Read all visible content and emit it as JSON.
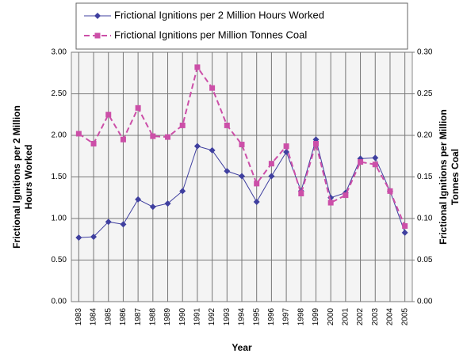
{
  "chart_data": {
    "type": "line",
    "xlabel": "Year",
    "ylabel": [
      "Frictional Ignitions per 2 Million",
      "Hours Worked"
    ],
    "y2label": [
      "Frictional Ignitions per Million",
      "Tonnes Coal"
    ],
    "categories": [
      "1983",
      "1984",
      "1985",
      "1986",
      "1987",
      "1988",
      "1989",
      "1990",
      "1991",
      "1992",
      "1993",
      "1994",
      "1995",
      "1996",
      "1997",
      "1998",
      "1999",
      "2000",
      "2001",
      "2002",
      "2003",
      "2004",
      "2005"
    ],
    "series": [
      {
        "name": "Frictional Ignitions per 2 Million Hours Worked",
        "color": "#3f3f9f",
        "marker": "diamond",
        "axis": "y",
        "values": [
          0.77,
          0.78,
          0.96,
          0.93,
          1.23,
          1.14,
          1.18,
          1.33,
          1.87,
          1.82,
          1.57,
          1.51,
          1.2,
          1.51,
          1.8,
          1.33,
          1.95,
          1.25,
          1.31,
          1.72,
          1.73,
          1.33,
          0.83
        ]
      },
      {
        "name": "Frictional Ignitions per Million Tonnes Coal",
        "color": "#cc4fa8",
        "marker": "square",
        "dashed": true,
        "axis": "y2",
        "values": [
          0.202,
          0.19,
          0.225,
          0.195,
          0.233,
          0.199,
          0.198,
          0.212,
          0.282,
          0.257,
          0.212,
          0.189,
          0.142,
          0.166,
          0.187,
          0.13,
          0.19,
          0.119,
          0.128,
          0.168,
          0.165,
          0.133,
          0.091
        ]
      }
    ],
    "ylim": [
      0,
      3
    ],
    "yticks": [
      {
        "value": 0,
        "label": "0.00"
      },
      {
        "value": 0.5,
        "label": "0.50"
      },
      {
        "value": 1,
        "label": "1.00"
      },
      {
        "value": 1.5,
        "label": "1.50"
      },
      {
        "value": 2,
        "label": "2.00"
      },
      {
        "value": 2.5,
        "label": "2.50"
      },
      {
        "value": 3,
        "label": "3.00"
      }
    ],
    "y2lim": [
      0,
      0.3
    ],
    "y2ticks": [
      {
        "value": 0,
        "label": "0.00"
      },
      {
        "value": 0.05,
        "label": "0.05"
      },
      {
        "value": 0.1,
        "label": "0.10"
      },
      {
        "value": 0.15,
        "label": "0.15"
      },
      {
        "value": 0.2,
        "label": "0.20"
      },
      {
        "value": 0.25,
        "label": "0.25"
      },
      {
        "value": 0.3,
        "label": "0.30"
      }
    ],
    "grid": true
  }
}
